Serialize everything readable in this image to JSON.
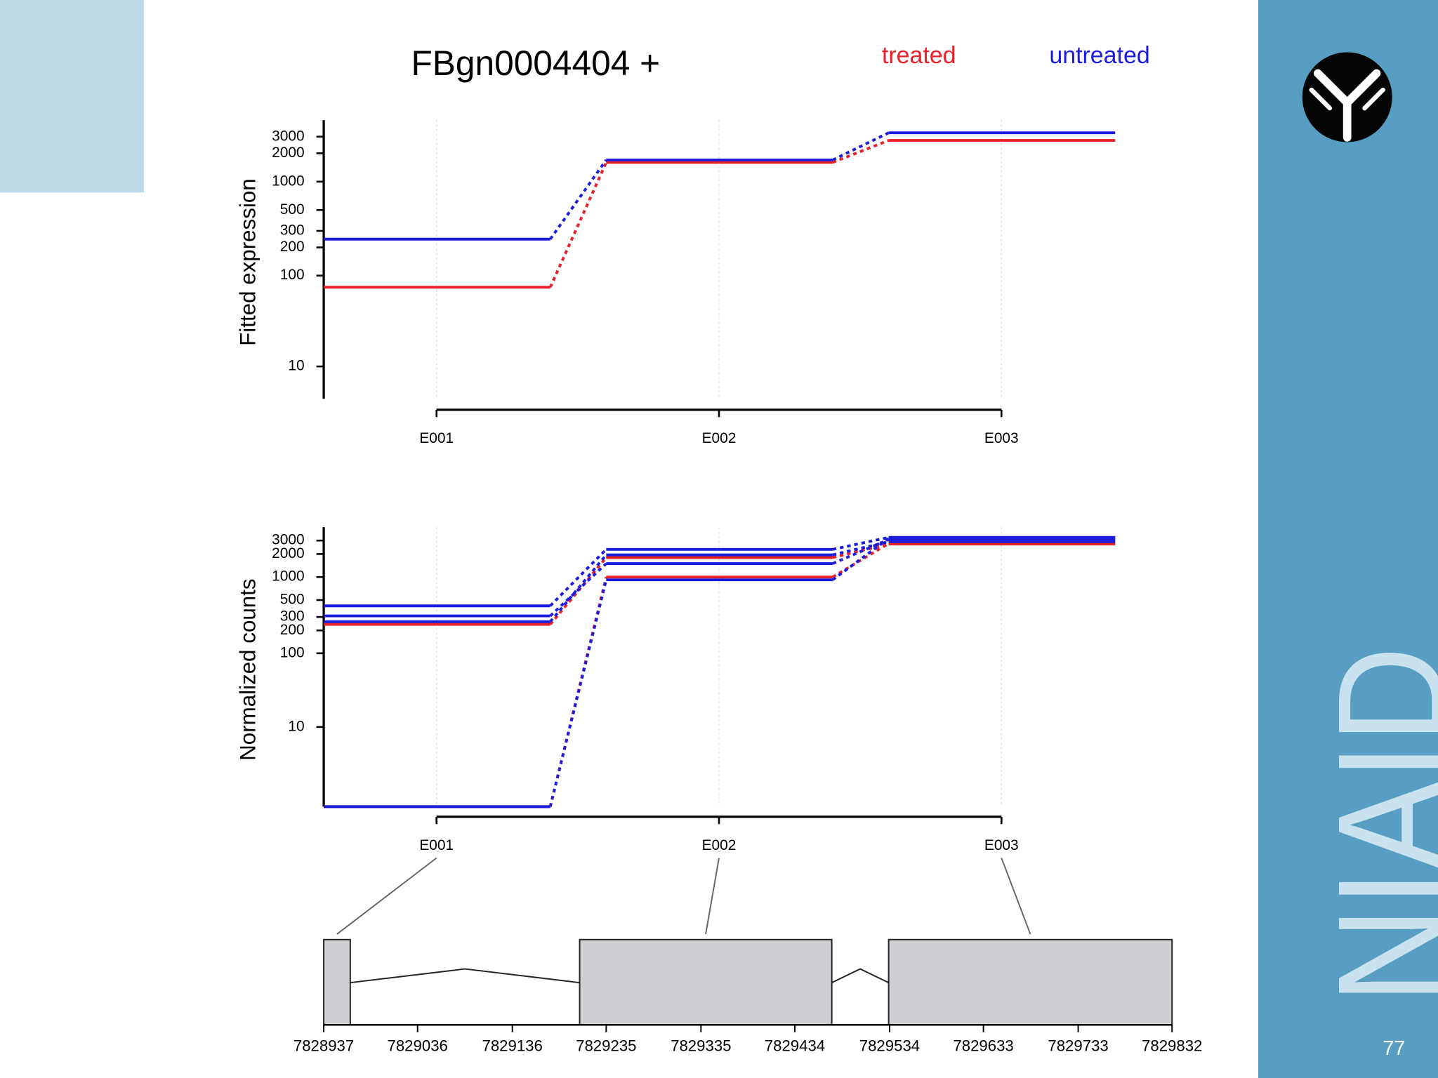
{
  "slide": {
    "logo_text": "NIAID",
    "page_number": "77"
  },
  "chart_data": [
    {
      "type": "line",
      "title": "FBgn0004404 +",
      "y_label": "Fitted expression",
      "yscale": "log1p",
      "ylim": [
        4,
        4500
      ],
      "yticks": [
        10,
        100,
        200,
        300,
        500,
        1000,
        2000,
        3000
      ],
      "grid": true,
      "categories": [
        "E001",
        "E002",
        "E003"
      ],
      "series": [
        {
          "name": "treated",
          "color": "#e8202a",
          "values": [
            75,
            1600,
            2740
          ]
        },
        {
          "name": "untreated",
          "color": "#1c1cdc",
          "values": [
            245,
            1700,
            3300
          ]
        }
      ]
    },
    {
      "type": "line",
      "y_label": "Normalized counts",
      "yscale": "log1p",
      "ylim": [
        0,
        4500
      ],
      "yticks": [
        10,
        100,
        200,
        300,
        500,
        1000,
        2000,
        3000
      ],
      "grid": true,
      "categories": [
        "E001",
        "E002",
        "E003"
      ],
      "series": [
        {
          "color": "#e8202a",
          "values": [
            240,
            1800,
            2700
          ]
        },
        {
          "color": "#e8202a",
          "values": [
            0,
            1000,
            2750
          ]
        },
        {
          "color": "#1c1cdc",
          "values": [
            420,
            2300,
            3300
          ]
        },
        {
          "color": "#1c1cdc",
          "values": [
            310,
            1500,
            3100
          ]
        },
        {
          "color": "#1c1cdc",
          "values": [
            260,
            1950,
            2900
          ]
        },
        {
          "color": "#1c1cdc",
          "values": [
            0,
            920,
            3200
          ]
        }
      ]
    }
  ],
  "gene_model": {
    "xlim": [
      7828937,
      7829832
    ],
    "xticks": [
      7828937,
      7829036,
      7829136,
      7829235,
      7829335,
      7829434,
      7829534,
      7829633,
      7829733,
      7829832
    ],
    "exons": [
      {
        "start": 7828937,
        "end": 7828965
      },
      {
        "start": 7829207,
        "end": 7829473
      },
      {
        "start": 7829533,
        "end": 7829832
      }
    ]
  }
}
